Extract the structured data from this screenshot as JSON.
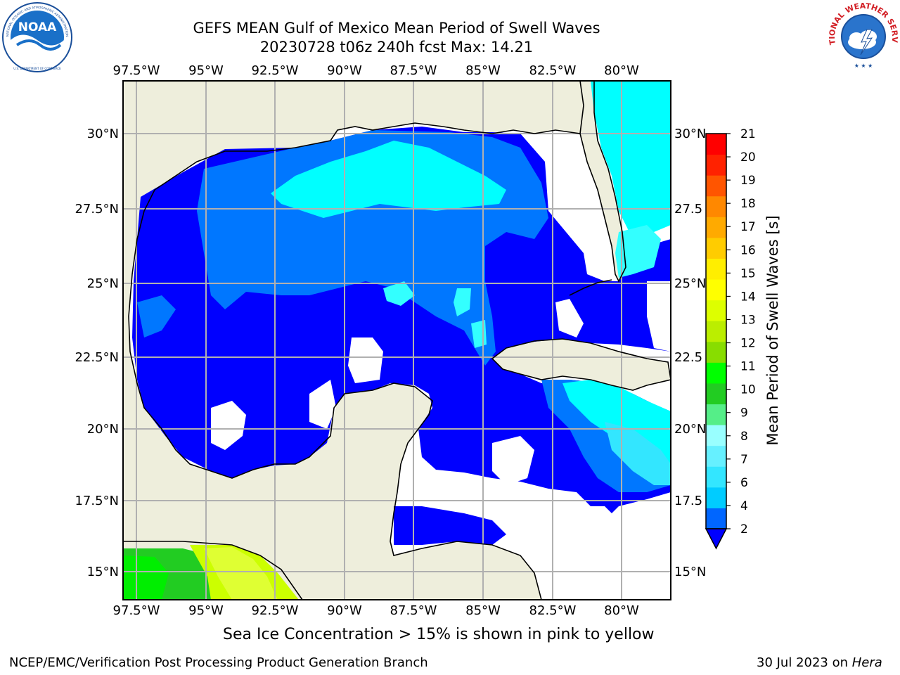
{
  "title": {
    "line1": "GEFS MEAN Gulf of Mexico Mean Period of Swell Waves",
    "line2": "20230728 t06z 240h fcst   Max: 14.21"
  },
  "logos": {
    "left": {
      "name": "NOAA",
      "ring_text": "NATIONAL OCEANIC AND ATMOSPHERIC ADMINISTRATION",
      "bottom_text": "U.S. DEPARTMENT OF COMMERCE"
    },
    "right": {
      "ring_text": "NATIONAL WEATHER SERVICE"
    }
  },
  "map": {
    "lon_labels": [
      "97.5°W",
      "95°W",
      "92.5°W",
      "90°W",
      "87.5°W",
      "85°W",
      "82.5°W",
      "80°W"
    ],
    "lat_labels_left": [
      "30°N",
      "27.5°N",
      "25°N",
      "22.5°N",
      "20°N",
      "17.5°N",
      "15°N"
    ],
    "lat_labels_right": [
      "30°N",
      "27.5",
      "25°N",
      "22.5",
      "20°N",
      "17.5",
      "15°N"
    ],
    "colors": {
      "land": "#eeeedc",
      "grid": "#b0b0b0"
    }
  },
  "colorbar": {
    "label": "Mean Period of Swell Waves [s]",
    "ticks": [
      "2",
      "4",
      "6",
      "7",
      "8",
      "9",
      "10",
      "11",
      "12",
      "13",
      "14",
      "15",
      "16",
      "17",
      "18",
      "19",
      "20",
      "21"
    ],
    "colors": [
      "#0066ff",
      "#00ccff",
      "#33e6ff",
      "#66f0ff",
      "#99ffff",
      "#55ee88",
      "#22cc22",
      "#00ff00",
      "#88dd00",
      "#bbee00",
      "#ddff00",
      "#ffff00",
      "#ffee00",
      "#ffcc00",
      "#ffaa00",
      "#ff8800",
      "#ff5500",
      "#ff2200",
      "#ff0000"
    ]
  },
  "ice_note": "Sea Ice Concentration > 15% is shown in pink to yellow",
  "footer": {
    "left": "NCEP/EMC/Verification Post Processing Product Generation Branch",
    "right_date": "30 Jul 2023 on ",
    "right_host": "Hera"
  }
}
